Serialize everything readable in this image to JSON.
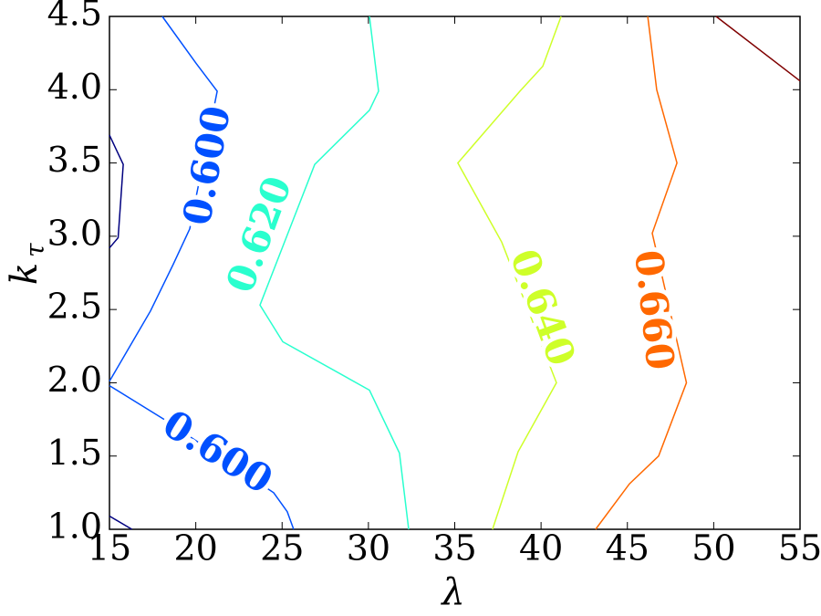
{
  "chart_data": {
    "type": "contour",
    "xlabel": "λ",
    "ylabel": "k",
    "ylabel_subscript": "τ",
    "xlim": [
      15,
      55
    ],
    "ylim": [
      1.0,
      4.5
    ],
    "xticks": [
      15,
      20,
      25,
      30,
      35,
      40,
      45,
      50,
      55
    ],
    "yticks": [
      {
        "value": 1.0,
        "label": "1.0"
      },
      1.5,
      {
        "value": 2.0,
        "label": "2.0"
      },
      2.5,
      {
        "value": 3.0,
        "label": "3.0"
      },
      3.5,
      {
        "value": 4.0,
        "label": "4.0"
      },
      4.5
    ],
    "series": [
      {
        "color": "#00007f",
        "x": [
          15,
          15.8,
          15.5,
          15,
          null,
          15,
          16.3
        ],
        "y": [
          3.69,
          3.49,
          2.99,
          2.92,
          null,
          1.09,
          1.0
        ]
      },
      {
        "name": "0.600",
        "color": "#0050ff",
        "x": [
          18.06,
          20.02,
          21.24,
          19.65,
          18.7,
          17.38,
          15
        ],
        "y": [
          4.5,
          4.18,
          3.99,
          3.05,
          2.81,
          2.49,
          2.01
        ]
      },
      {
        "name": "0.600",
        "color": "#0050ff",
        "x": [
          15,
          18.17,
          24.51,
          25.3,
          25.67
        ],
        "y": [
          1.98,
          1.75,
          1.25,
          1.12,
          1.0
        ]
      },
      {
        "name": "0.620",
        "color": "#29ffce",
        "x": [
          30.06,
          30.59,
          30.06,
          26.89,
          23.72,
          25.04,
          30.06,
          31.8,
          32.33
        ],
        "y": [
          4.5,
          3.99,
          3.86,
          3.49,
          2.53,
          2.28,
          1.95,
          1.52,
          1.0
        ]
      },
      {
        "name": "0.640",
        "color": "#ceff29",
        "x": [
          41.16,
          40.1,
          38.78,
          35.18,
          37.72,
          40.89,
          38.67,
          37.19
        ],
        "y": [
          4.5,
          4.16,
          3.99,
          3.5,
          2.96,
          2.0,
          1.53,
          1.0
        ]
      },
      {
        "name": "0.660",
        "color": "#ff6800",
        "x": [
          46.18,
          46.7,
          47.87,
          46.44,
          48.42,
          46.81,
          45.12,
          43.16
        ],
        "y": [
          4.5,
          4.0,
          3.5,
          3.02,
          2.0,
          1.5,
          1.31,
          1.0
        ]
      },
      {
        "color": "#7f0000",
        "x": [
          50.14,
          55
        ],
        "y": [
          4.5,
          4.06
        ]
      }
    ]
  }
}
